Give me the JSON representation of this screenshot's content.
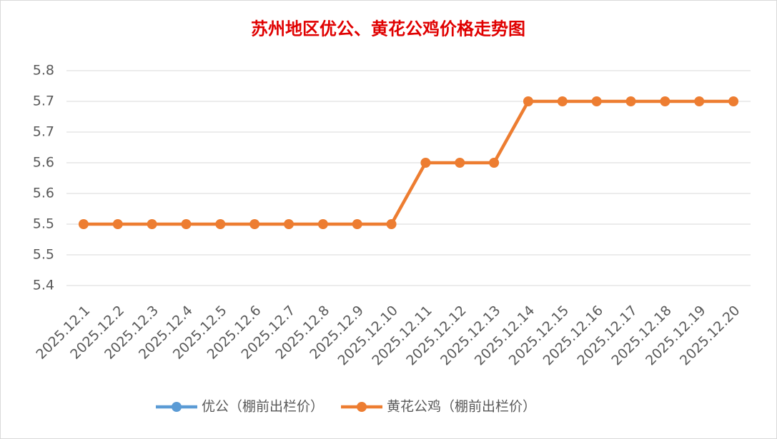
{
  "chart_data": {
    "type": "line",
    "title": "苏州地区优公、黄花公鸡价格走势图",
    "categories": [
      "2025.12.1",
      "2025.12.2",
      "2025.12.3",
      "2025.12.4",
      "2025.12.5",
      "2025.12.6",
      "2025.12.7",
      "2025.12.8",
      "2025.12.9",
      "2025.12.10",
      "2025.12.11",
      "2025.12.12",
      "2025.12.13",
      "2025.12.14",
      "2025.12.15",
      "2025.12.16",
      "2025.12.17",
      "2025.12.18",
      "2025.12.19",
      "2025.12.20"
    ],
    "series": [
      {
        "name": "优公（棚前出栏价）",
        "color": "#5b9bd5",
        "values": [
          null,
          null,
          null,
          null,
          null,
          null,
          null,
          null,
          null,
          null,
          null,
          null,
          null,
          null,
          null,
          null,
          null,
          null,
          null,
          null
        ]
      },
      {
        "name": "黄花公鸡（棚前出栏价）",
        "color": "#ed7d31",
        "values": [
          5.5,
          5.5,
          5.5,
          5.5,
          5.5,
          5.5,
          5.5,
          5.5,
          5.5,
          5.5,
          5.6,
          5.6,
          5.6,
          5.7,
          5.7,
          5.7,
          5.7,
          5.7,
          5.7,
          5.7
        ]
      }
    ],
    "ylim": [
      5.4,
      5.75
    ],
    "yticks": [
      5.4,
      {
        "value": 5.45,
        "label": "5.5"
      },
      5.5,
      {
        "value": 5.55,
        "label": "5.6"
      },
      5.6,
      {
        "value": 5.65,
        "label": "5.7"
      },
      5.7,
      {
        "value": 5.75,
        "label": "5.8"
      }
    ],
    "grid": true,
    "legend": "bottom"
  }
}
